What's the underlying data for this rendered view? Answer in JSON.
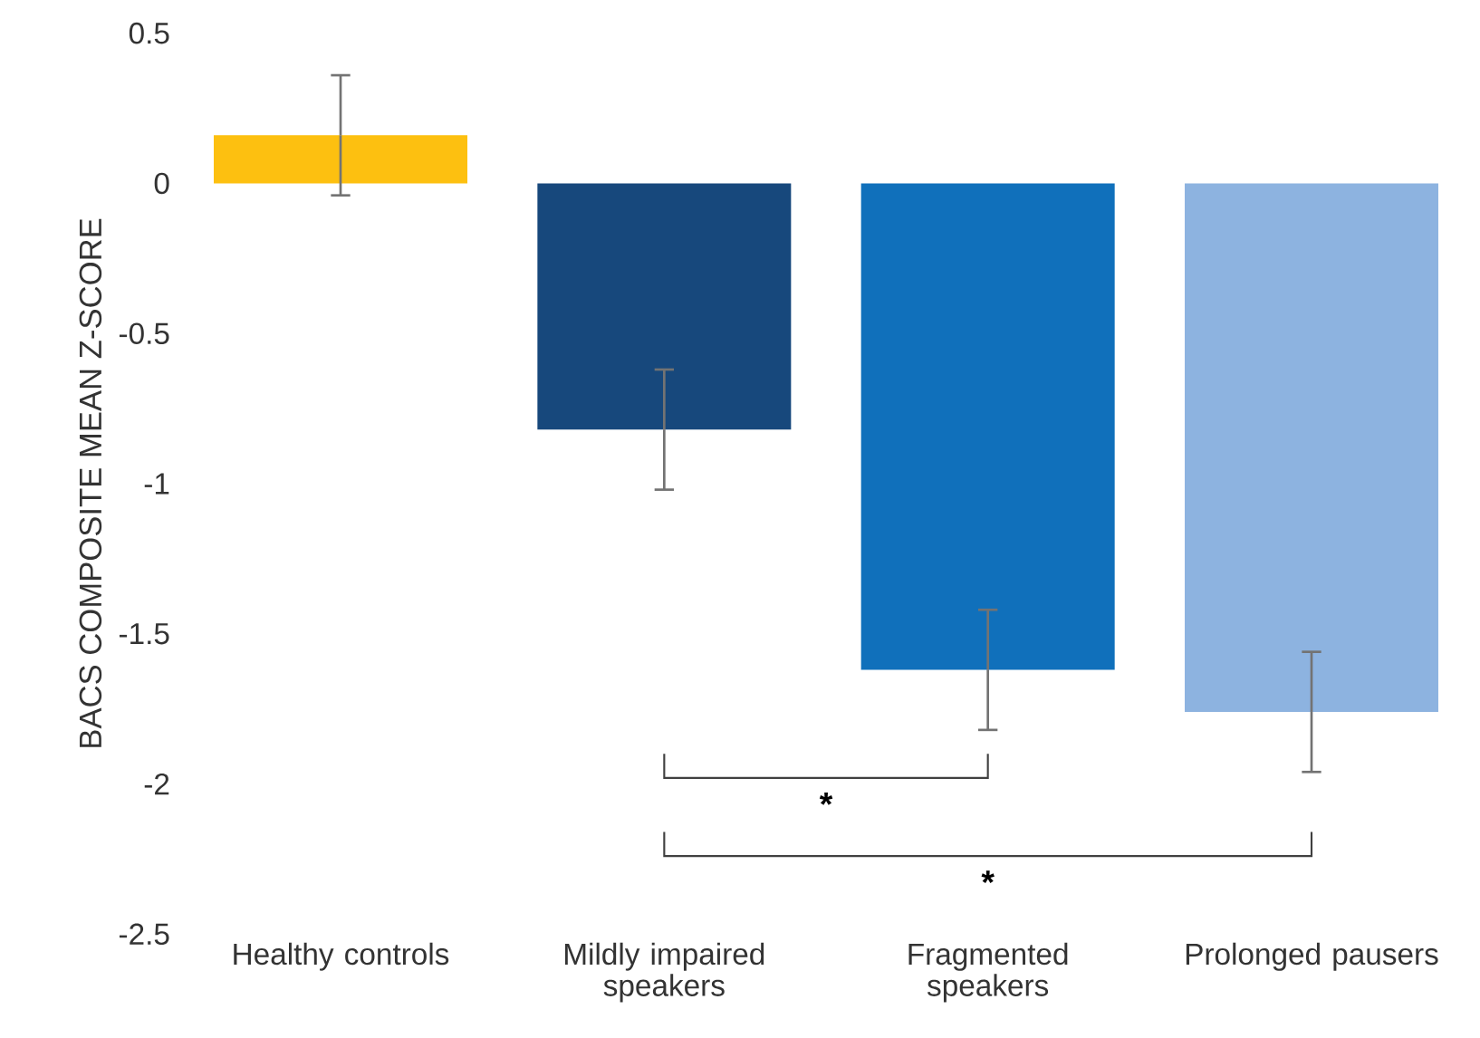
{
  "chart_data": {
    "type": "bar",
    "ylabel": "BACS COMPOSITE MEAN Z-SCORE",
    "categories": [
      "Healthy controls",
      "Mildly impaired speakers",
      "Fragmented speakers",
      "Prolonged pausers"
    ],
    "values": [
      0.16,
      -0.82,
      -1.62,
      -1.76
    ],
    "errors": [
      0.2,
      0.2,
      0.2,
      0.2
    ],
    "colors": [
      "#fdc010",
      "#17487c",
      "#1070bb",
      "#8db3e0"
    ],
    "ylim": [
      -2.5,
      0.5
    ],
    "yticks": [
      0.5,
      0,
      -0.5,
      -1,
      -1.5,
      -2,
      -2.5
    ],
    "annotations": [
      "*",
      "*"
    ]
  }
}
